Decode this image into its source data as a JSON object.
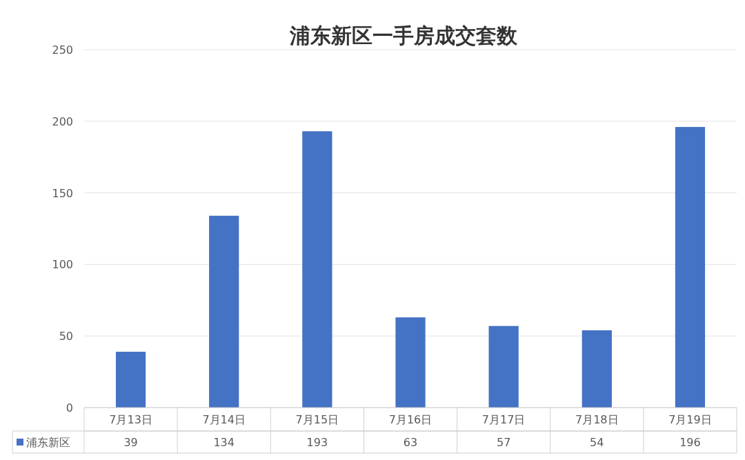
{
  "chart_data": {
    "type": "bar",
    "title": "浦东新区一手房成交套数",
    "categories": [
      "7月13日",
      "7月14日",
      "7月15日",
      "7月16日",
      "7月17日",
      "7月18日",
      "7月19日"
    ],
    "series": [
      {
        "name": "浦东新区",
        "color": "#4472c4",
        "values": [
          39,
          134,
          193,
          63,
          57,
          54,
          196
        ]
      }
    ],
    "ylim": [
      0,
      250
    ],
    "yticks": [
      0,
      50,
      100,
      150,
      200,
      250
    ],
    "grid": "y",
    "data_labels": true,
    "legend": "bottom"
  }
}
